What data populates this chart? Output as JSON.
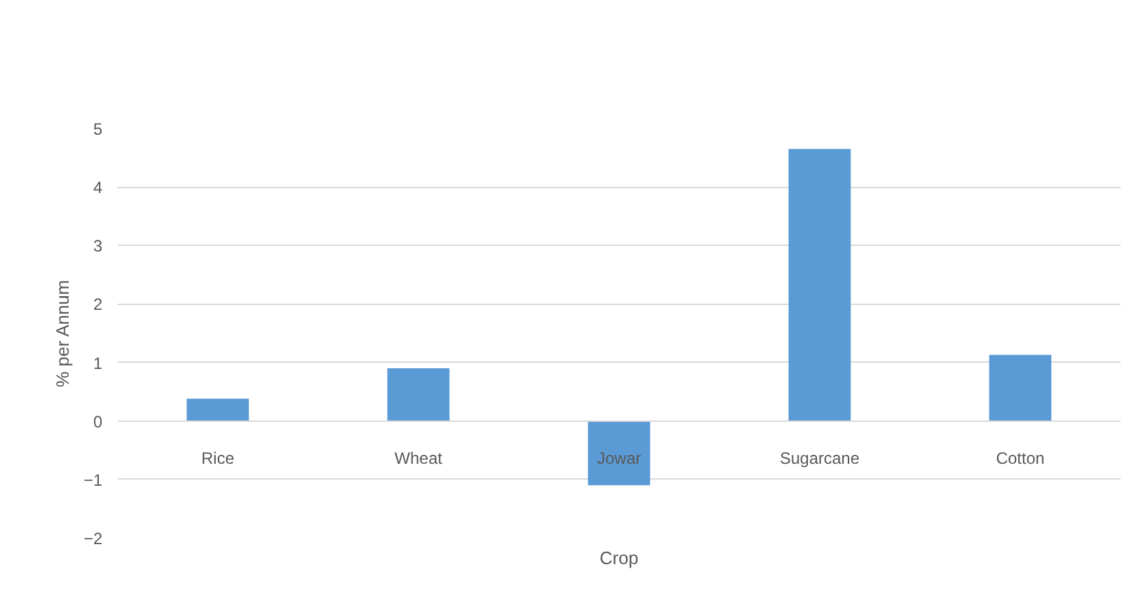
{
  "chart_data": {
    "type": "bar",
    "xlabel": "Crop",
    "ylabel": "% per Annum",
    "categories": [
      "Rice",
      "Wheat",
      "Jowar",
      "Sugarcane",
      "Cotton"
    ],
    "values": [
      0.38,
      0.9,
      -1.1,
      4.65,
      1.13
    ],
    "color": "#5b9bd5",
    "ylim": [
      -2,
      5
    ],
    "yticks": [
      -2,
      -1,
      0,
      1,
      2,
      3,
      4,
      5
    ],
    "grid": "y"
  }
}
